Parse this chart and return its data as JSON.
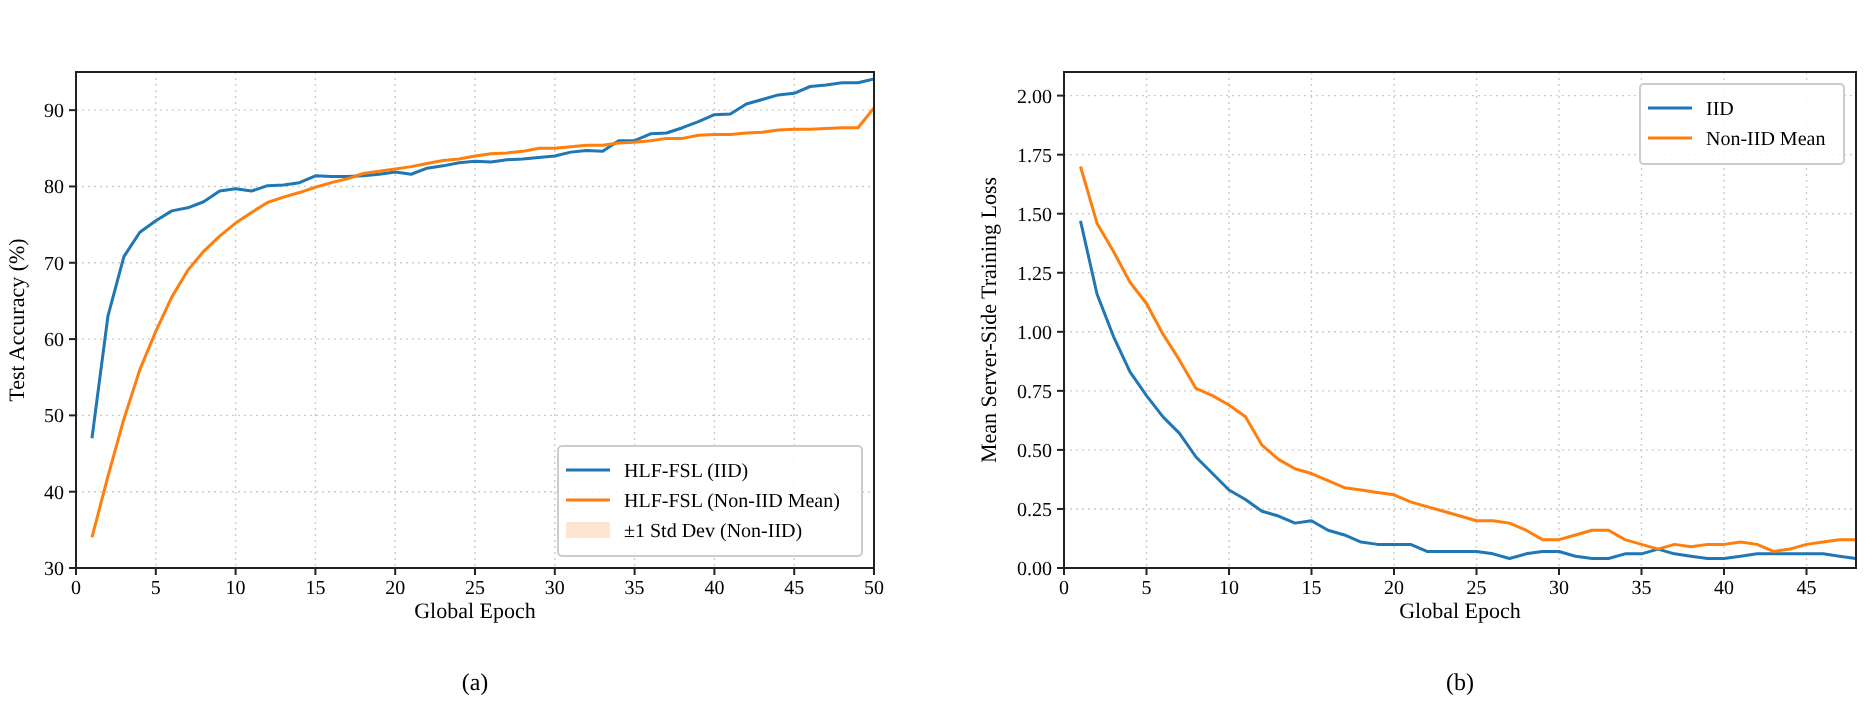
{
  "chart_data": [
    {
      "type": "line",
      "xlabel": "Global Epoch",
      "ylabel": "Test Accuracy (%)",
      "annotations": [
        "(a)"
      ],
      "x": [
        1,
        2,
        3,
        4,
        5,
        6,
        7,
        8,
        9,
        10,
        11,
        12,
        13,
        14,
        15,
        16,
        17,
        18,
        19,
        20,
        21,
        22,
        23,
        24,
        25,
        26,
        27,
        28,
        29,
        30,
        31,
        32,
        33,
        34,
        35,
        36,
        37,
        38,
        39,
        40,
        41,
        42,
        43,
        44,
        45,
        46,
        47,
        48,
        49,
        50
      ],
      "xlim": [
        0,
        50
      ],
      "xticks": [
        0,
        5,
        10,
        15,
        20,
        25,
        30,
        35,
        40,
        45,
        50
      ],
      "ylim": [
        30,
        95
      ],
      "yticks": [
        30,
        40,
        50,
        60,
        70,
        80,
        90
      ],
      "grid": true,
      "legend": "bottom right",
      "series": [
        {
          "name": "HLF-FSL (IID)",
          "color": "#1f77b4",
          "values": [
            47,
            63,
            70.8,
            74,
            75.5,
            76.8,
            77.2,
            78,
            79.4,
            79.7,
            79.4,
            80.1,
            80.2,
            80.5,
            81.4,
            81.3,
            81.3,
            81.4,
            81.6,
            81.9,
            81.6,
            82.4,
            82.7,
            83.1,
            83.3,
            83.2,
            83.5,
            83.6,
            83.8,
            84,
            84.5,
            84.7,
            84.6,
            86,
            86,
            86.9,
            87,
            87.7,
            88.5,
            89.4,
            89.5,
            90.8,
            91.4,
            92,
            92.2,
            93.1,
            93.3,
            93.6,
            93.6,
            94.1
          ]
        },
        {
          "name": "HLF-FSL (Non-IID Mean)",
          "color": "#ff7f0e",
          "values": [
            34,
            42,
            49.5,
            56,
            61,
            65.5,
            69,
            71.5,
            73.5,
            75.2,
            76.6,
            77.9,
            78.6,
            79.2,
            79.9,
            80.5,
            81,
            81.7,
            82,
            82.3,
            82.6,
            83,
            83.4,
            83.6,
            84,
            84.3,
            84.4,
            84.6,
            85,
            85,
            85.2,
            85.4,
            85.4,
            85.7,
            85.8,
            86,
            86.3,
            86.3,
            86.7,
            86.8,
            86.8,
            87,
            87.1,
            87.4,
            87.5,
            87.5,
            87.6,
            87.7,
            87.7,
            90.3
          ]
        },
        {
          "name": "±1 Std Dev (Non-IID)",
          "type": "area",
          "color": "#ffdfc4",
          "values": [
            null,
            null,
            null,
            null,
            null,
            null,
            null,
            null,
            null,
            null,
            null,
            null,
            null,
            null,
            null,
            null,
            null,
            null,
            null,
            null,
            null,
            null,
            null,
            null,
            null,
            null,
            null,
            null,
            null,
            null,
            null,
            null,
            null,
            null,
            null,
            null,
            null,
            null,
            null,
            null,
            null,
            null,
            null,
            null,
            null,
            null,
            null,
            null,
            null,
            null
          ]
        }
      ]
    },
    {
      "type": "line",
      "xlabel": "Global Epoch",
      "ylabel": "Mean Server-Side Training Loss",
      "annotations": [
        "(b)"
      ],
      "x": [
        1,
        2,
        3,
        4,
        5,
        6,
        7,
        8,
        9,
        10,
        11,
        12,
        13,
        14,
        15,
        16,
        17,
        18,
        19,
        20,
        21,
        22,
        23,
        24,
        25,
        26,
        27,
        28,
        29,
        30,
        31,
        32,
        33,
        34,
        35,
        36,
        37,
        38,
        39,
        40,
        41,
        42,
        43,
        44,
        45,
        46,
        47,
        48
      ],
      "xlim": [
        0,
        48
      ],
      "xticks": [
        0,
        5,
        10,
        15,
        20,
        25,
        30,
        35,
        40,
        45
      ],
      "ylim": [
        0,
        2.1
      ],
      "yticks": [
        {
          "value": 0,
          "label": "0.00"
        },
        {
          "value": 0.25,
          "label": "0.25"
        },
        {
          "value": 0.5,
          "label": "0.50"
        },
        {
          "value": 0.75,
          "label": "0.75"
        },
        {
          "value": 1,
          "label": "1.00"
        },
        {
          "value": 1.25,
          "label": "1.25"
        },
        {
          "value": 1.5,
          "label": "1.50"
        },
        {
          "value": 1.75,
          "label": "1.75"
        },
        {
          "value": 2,
          "label": "2.00"
        }
      ],
      "grid": true,
      "legend": "top right",
      "series": [
        {
          "name": "IID",
          "color": "#1f77b4",
          "values": [
            1.47,
            1.16,
            0.98,
            0.83,
            0.73,
            0.64,
            0.57,
            0.47,
            0.4,
            0.33,
            0.29,
            0.24,
            0.22,
            0.19,
            0.2,
            0.16,
            0.14,
            0.11,
            0.1,
            0.1,
            0.1,
            0.07,
            0.07,
            0.07,
            0.07,
            0.06,
            0.04,
            0.06,
            0.07,
            0.07,
            0.05,
            0.04,
            0.04,
            0.06,
            0.06,
            0.08,
            0.06,
            0.05,
            0.04,
            0.04,
            0.05,
            0.06,
            0.06,
            0.06,
            0.06,
            0.06,
            0.05,
            0.04
          ]
        },
        {
          "name": "Non-IID Mean",
          "color": "#ff7f0e",
          "values": [
            1.7,
            1.46,
            1.34,
            1.21,
            1.12,
            0.99,
            0.88,
            0.76,
            0.73,
            0.69,
            0.64,
            0.52,
            0.46,
            0.42,
            0.4,
            0.37,
            0.34,
            0.33,
            0.32,
            0.31,
            0.28,
            0.26,
            0.24,
            0.22,
            0.2,
            0.2,
            0.19,
            0.16,
            0.12,
            0.12,
            0.14,
            0.16,
            0.16,
            0.12,
            0.1,
            0.08,
            0.1,
            0.09,
            0.1,
            0.1,
            0.11,
            0.1,
            0.07,
            0.08,
            0.1,
            0.11,
            0.12,
            0.12
          ]
        }
      ]
    }
  ]
}
